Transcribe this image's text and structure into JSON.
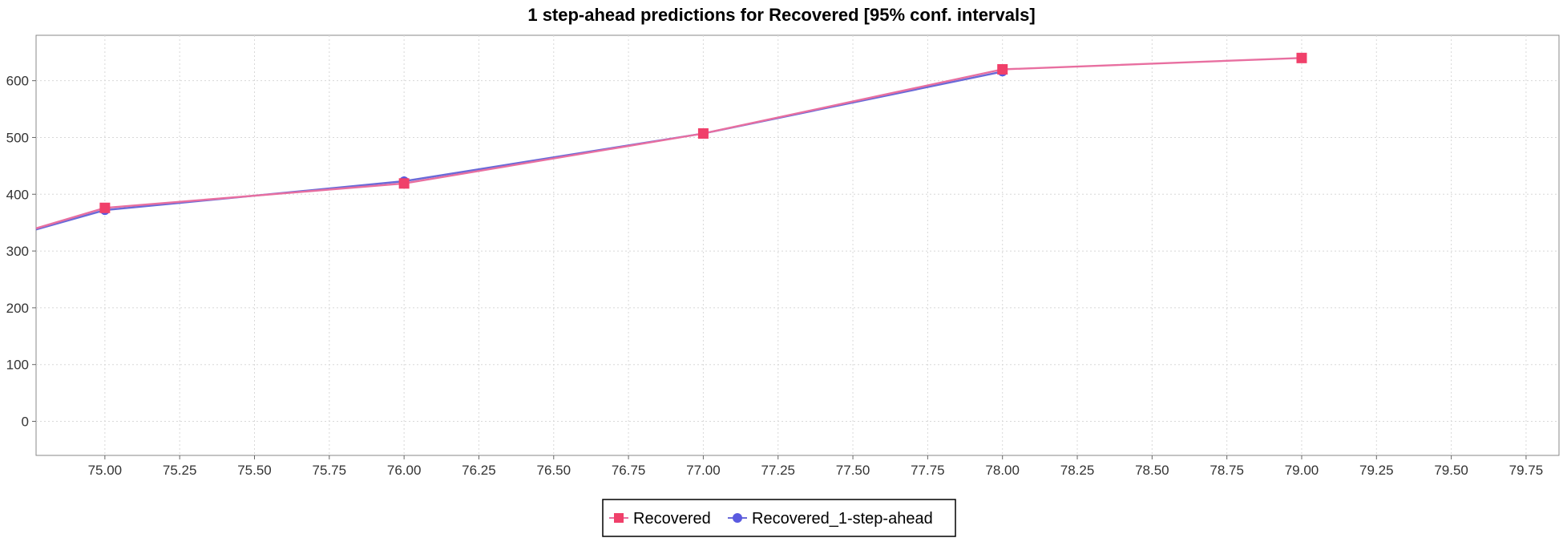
{
  "chart_data": {
    "type": "line",
    "title": "1 step-ahead predictions for Recovered [95% conf. intervals]",
    "xlabel": "",
    "ylabel": "",
    "xlim": [
      74.77,
      79.86
    ],
    "ylim": [
      -60,
      680
    ],
    "x_ticks": [
      75.0,
      75.25,
      75.5,
      75.75,
      76.0,
      76.25,
      76.5,
      76.75,
      77.0,
      77.25,
      77.5,
      77.75,
      78.0,
      78.25,
      78.5,
      78.75,
      79.0,
      79.25,
      79.5,
      79.75
    ],
    "x_tick_labels": [
      "75.00",
      "75.25",
      "75.50",
      "75.75",
      "76.00",
      "76.25",
      "76.50",
      "76.75",
      "77.00",
      "77.25",
      "77.50",
      "77.75",
      "78.00",
      "78.25",
      "78.50",
      "78.75",
      "79.00",
      "79.25",
      "79.50",
      "79.75"
    ],
    "y_ticks": [
      0,
      100,
      200,
      300,
      400,
      500,
      600
    ],
    "y_tick_labels": [
      "0",
      "100",
      "200",
      "300",
      "400",
      "500",
      "600"
    ],
    "grid": true,
    "legend_position": "bottom-center",
    "series": [
      {
        "name": "Recovered",
        "color": "#f0406a",
        "line_color": "#e86fa0",
        "marker": "square",
        "x": [
          74.77,
          75.0,
          76.0,
          77.0,
          78.0,
          79.0
        ],
        "y": [
          340,
          376,
          419,
          507,
          620,
          640
        ],
        "marker_indices": [
          1,
          2,
          3,
          4,
          5
        ]
      },
      {
        "name": "Recovered_1-step-ahead",
        "color": "#5a5ae0",
        "line_color": "#6a6ad8",
        "marker": "circle",
        "x": [
          74.77,
          75.0,
          76.0,
          77.0,
          78.0
        ],
        "y": [
          338,
          372,
          423,
          507,
          616
        ],
        "marker_indices": [
          1,
          2,
          3,
          4
        ]
      }
    ]
  }
}
